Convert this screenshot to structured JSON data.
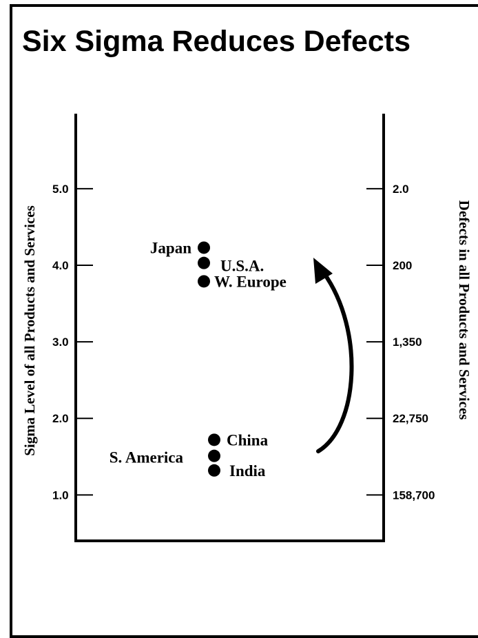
{
  "chart_data": {
    "type": "scatter",
    "title": "Six Sigma Reduces Defects",
    "ylabel": "Sigma Level of all Products and Services",
    "y2label": "Defects in all Products and Services",
    "ylim": [
      0.4,
      5.98
    ],
    "yticks": [
      {
        "value": 1.0,
        "label": "1.0",
        "right_label": "158,700"
      },
      {
        "value": 2.0,
        "label": "2.0",
        "right_label": "22,750"
      },
      {
        "value": 3.0,
        "label": "3.0",
        "right_label": "1,350"
      },
      {
        "value": 4.0,
        "label": "4.0",
        "right_label": "200"
      },
      {
        "value": 5.0,
        "label": "5.0",
        "right_label": "2.0"
      }
    ],
    "points": [
      {
        "label": "Japan",
        "y": 4.23
      },
      {
        "label": "U.S.A.",
        "y": 4.03
      },
      {
        "label": "W. Europe",
        "y": 3.79
      },
      {
        "label": "China",
        "y": 1.72
      },
      {
        "label": "S. America",
        "y": 1.51
      },
      {
        "label": "India",
        "y": 1.32
      }
    ],
    "legend": "none",
    "grid": false
  }
}
